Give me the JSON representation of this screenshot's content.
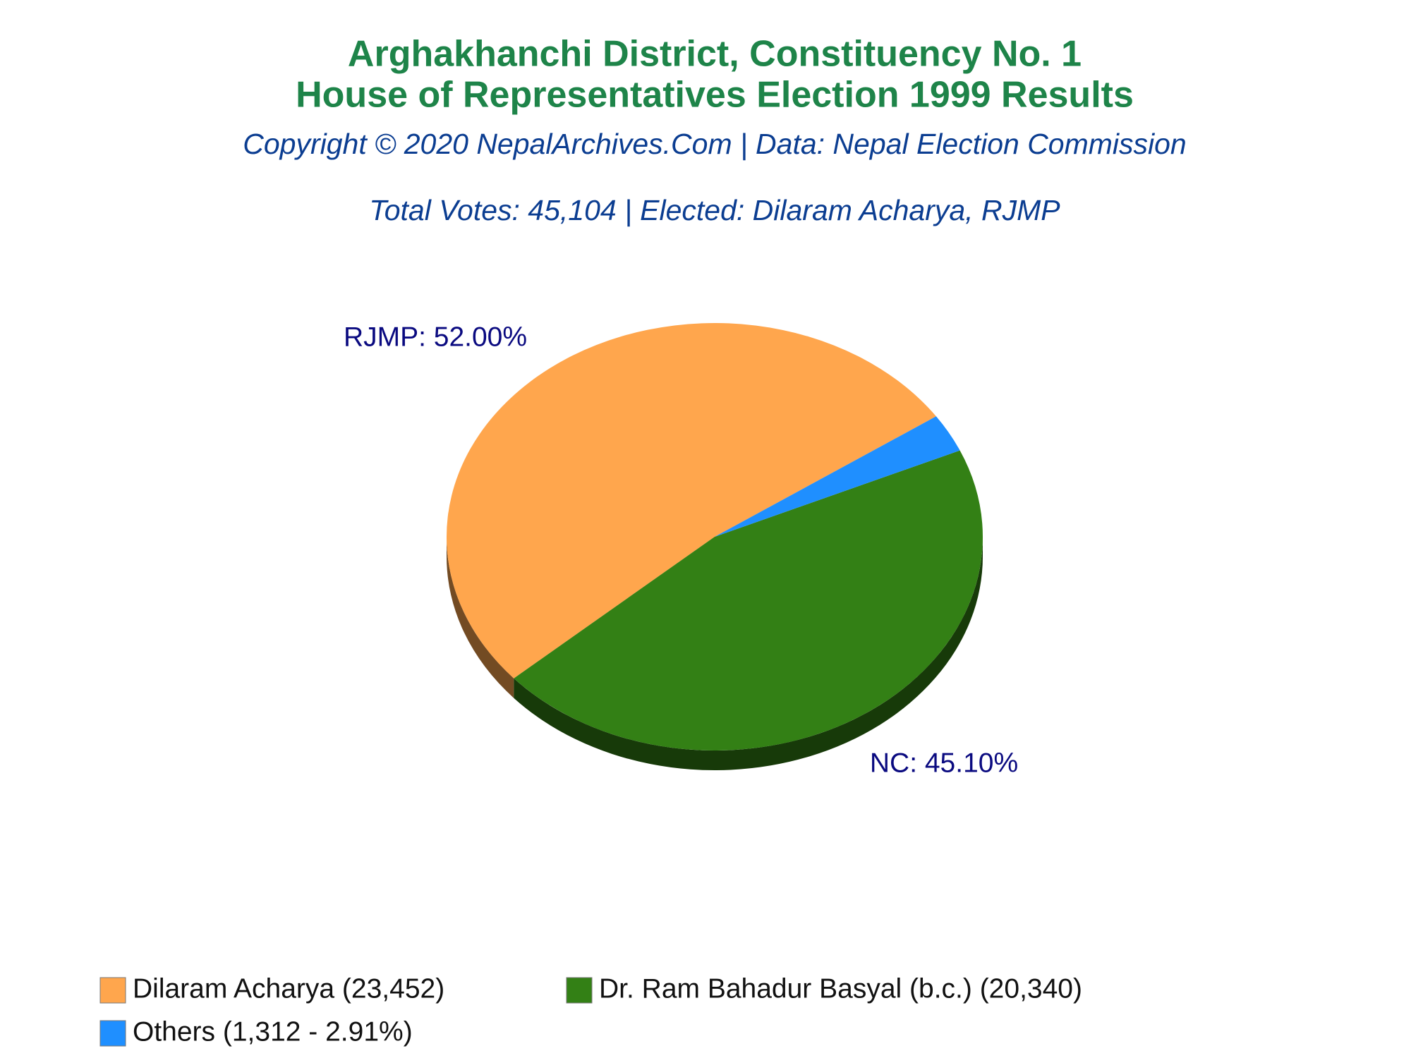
{
  "chart_data": {
    "type": "pie",
    "title": "Arghakhanchi District, Constituency No. 1",
    "subtitle": "House of Representatives Election 1999 Results",
    "credit": "Copyright © 2020 NepalArchives.Com | Data: Nepal Election Commission",
    "summary": "Total Votes: 45,104 | Elected: Dilaram Acharya, RJMP",
    "categories": [
      "Dilaram Acharya (23,452)",
      "Dr. Ram Bahadur Basyal (b.c.) (20,340)",
      "Others (1,312 - 2.91%)"
    ],
    "values": [
      52.0,
      45.1,
      2.91
    ],
    "value_labels": [
      "RJMP: 52.00%",
      "NC: 45.10%",
      null
    ],
    "colors": [
      "#ffa64d",
      "#338015",
      "#1f8fff"
    ]
  }
}
